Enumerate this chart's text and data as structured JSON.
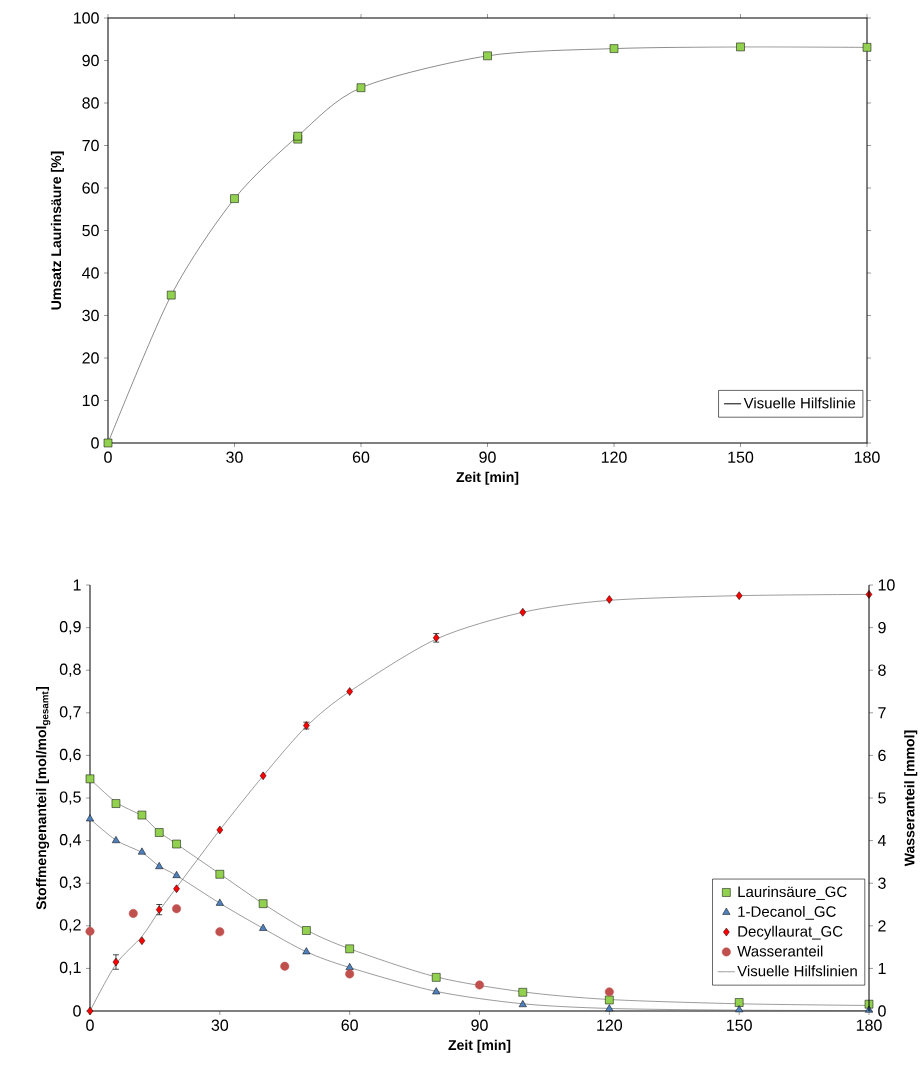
{
  "chart_data": [
    {
      "type": "scatter",
      "xlabel": "Zeit [min]",
      "ylabel": "Umsatz Laurinsäure [%]",
      "xlim": [
        0,
        180
      ],
      "ylim": [
        0,
        100
      ],
      "xticks": [
        0,
        30,
        60,
        90,
        120,
        150,
        180
      ],
      "yticks": [
        0,
        10,
        20,
        30,
        40,
        50,
        60,
        70,
        80,
        90,
        100
      ],
      "legend": "bottom right",
      "series": [
        {
          "color": "#92d050",
          "marker": "square",
          "x": [
            0,
            15,
            30,
            45,
            45,
            60,
            90,
            120,
            150,
            180
          ],
          "values": [
            0,
            34.8,
            57.5,
            71.5,
            72.2,
            83.6,
            91.1,
            92.8,
            93.2,
            93.1
          ]
        },
        {
          "type": "line",
          "name": "Visuelle Hilfslinie",
          "color": "#404040",
          "x": [
            0,
            15,
            30,
            45,
            60,
            90,
            120,
            150,
            180
          ],
          "values": [
            0,
            34.8,
            57.5,
            72.2,
            83.6,
            91.1,
            92.8,
            93.2,
            93.1
          ]
        }
      ]
    },
    {
      "type": "scatter",
      "xlabel": "Zeit [min]",
      "ylabel": "Stoffmengenanteil [mol/mol$_{gesamt}$]",
      "y2label": "Wasseranteil [mmol]",
      "xlim": [
        0,
        180
      ],
      "ylim": [
        0,
        1
      ],
      "y2lim": [
        0,
        10
      ],
      "xticks": [
        0,
        30,
        60,
        90,
        120,
        150,
        180
      ],
      "yticks": [
        0,
        {
          "value": 0.1,
          "label": "0,1"
        },
        {
          "value": 0.2,
          "label": "0,2"
        },
        {
          "value": 0.3,
          "label": "0,3"
        },
        {
          "value": 0.4,
          "label": "0,4"
        },
        {
          "value": 0.5,
          "label": "0,5"
        },
        {
          "value": 0.6,
          "label": "0,6"
        },
        {
          "value": 0.7,
          "label": "0,7"
        },
        {
          "value": 0.8,
          "label": "0,8"
        },
        {
          "value": 0.9,
          "label": "0,9"
        },
        1
      ],
      "y2ticks": [
        0,
        1,
        2,
        3,
        4,
        5,
        6,
        7,
        8,
        9,
        10
      ],
      "legend": "bottom right",
      "series": [
        {
          "name": "Laurinsäure_GC",
          "color": "#92d050",
          "marker": "square",
          "x": [
            0,
            6,
            12,
            16,
            20,
            30,
            40,
            50,
            60,
            80,
            100,
            120,
            150,
            180
          ],
          "values": [
            0.545,
            0.487,
            0.46,
            0.419,
            0.392,
            0.321,
            0.252,
            0.189,
            0.146,
            0.079,
            0.044,
            0.026,
            0.02,
            0.016
          ]
        },
        {
          "name": "1-Decanol_GC",
          "color": "#4f81bd",
          "marker": "triangle",
          "x": [
            0,
            6,
            12,
            16,
            20,
            30,
            40,
            50,
            60,
            80,
            100,
            120,
            150,
            180
          ],
          "values": [
            0.451,
            0.4,
            0.373,
            0.339,
            0.318,
            0.253,
            0.194,
            0.139,
            0.102,
            0.045,
            0.015,
            0.005,
            0.003,
            0.002
          ]
        },
        {
          "name": "Decyllaurat_GC",
          "color": "#ff0000",
          "marker": "diamond",
          "x": [
            0,
            6,
            12,
            16,
            20,
            30,
            40,
            50,
            60,
            80,
            100,
            120,
            150,
            180
          ],
          "values": [
            0,
            0.115,
            0.165,
            0.238,
            0.287,
            0.425,
            0.552,
            0.67,
            0.75,
            0.876,
            0.936,
            0.966,
            0.975,
            0.978
          ],
          "errors": [
            null,
            0.017,
            null,
            0.012,
            null,
            null,
            null,
            0.008,
            null,
            0.01,
            null,
            null,
            null,
            null
          ]
        },
        {
          "name": "Wasseranteil",
          "color": "#c0504d",
          "marker": "circle",
          "axis": "y2",
          "x": [
            0,
            10,
            20,
            30,
            45,
            60,
            90,
            120
          ],
          "values": [
            1.87,
            2.29,
            2.4,
            1.86,
            1.05,
            0.87,
            0.61,
            0.45
          ]
        },
        {
          "type": "line",
          "name": "Visuelle Hilfslinien",
          "color": "#595959",
          "x": [
            0,
            6,
            12,
            16,
            20,
            30,
            40,
            50,
            60,
            80,
            100,
            120,
            150,
            180
          ],
          "values": [
            0.545,
            0.49,
            0.458,
            0.42,
            0.392,
            0.322,
            0.252,
            0.19,
            0.146,
            0.08,
            0.045,
            0.027,
            0.017,
            0.013
          ]
        },
        {
          "type": "line",
          "color": "#595959",
          "x": [
            0,
            6,
            12,
            16,
            20,
            30,
            40,
            50,
            60,
            80,
            100,
            120,
            150,
            180
          ],
          "values": [
            0.451,
            0.401,
            0.372,
            0.34,
            0.318,
            0.253,
            0.194,
            0.139,
            0.102,
            0.046,
            0.017,
            0.006,
            0.002,
            0.001
          ]
        },
        {
          "type": "line",
          "color": "#595959",
          "x": [
            0,
            6,
            12,
            16,
            20,
            30,
            40,
            50,
            60,
            80,
            100,
            120,
            150,
            180
          ],
          "values": [
            0,
            0.11,
            0.175,
            0.235,
            0.29,
            0.425,
            0.552,
            0.668,
            0.75,
            0.873,
            0.936,
            0.964,
            0.975,
            0.978
          ]
        }
      ]
    }
  ]
}
